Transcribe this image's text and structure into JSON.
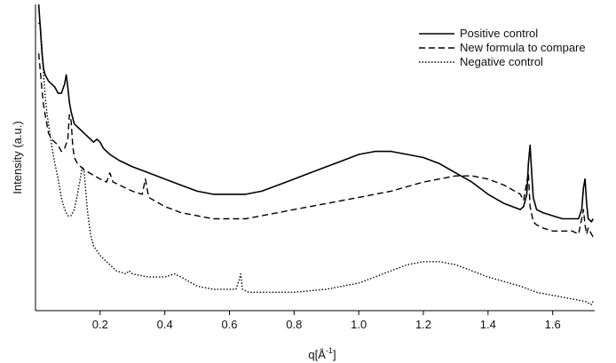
{
  "chart_data": {
    "type": "line",
    "xlabel": "q[Å⁻¹]",
    "ylabel": "Intensity (a.u.)",
    "xlim": [
      0.0,
      1.73
    ],
    "ylim": [
      0,
      100
    ],
    "y_ticks_shown": false,
    "x_ticks": [
      {
        "value": 0.2,
        "label": "0.2"
      },
      {
        "value": 0.4,
        "label": "0.4"
      },
      {
        "value": 0.6,
        "label": "0.6"
      },
      {
        "value": 0.8,
        "label": "0.8"
      },
      {
        "value": 1.0,
        "label": "1.0"
      },
      {
        "value": 1.2,
        "label": "1.2"
      },
      {
        "value": 1.4,
        "label": "1.4"
      },
      {
        "value": 1.6,
        "label": "1.6"
      }
    ],
    "legend": {
      "position": "top-right"
    },
    "series": [
      {
        "name": "Positive control",
        "style": "solid",
        "color": "#000000",
        "x": [
          0.01,
          0.015,
          0.02,
          0.025,
          0.03,
          0.04,
          0.05,
          0.06,
          0.07,
          0.08,
          0.09,
          0.095,
          0.1,
          0.105,
          0.11,
          0.12,
          0.14,
          0.16,
          0.18,
          0.19,
          0.2,
          0.21,
          0.23,
          0.26,
          0.3,
          0.35,
          0.4,
          0.45,
          0.5,
          0.55,
          0.6,
          0.65,
          0.7,
          0.75,
          0.8,
          0.85,
          0.9,
          0.95,
          1.0,
          1.05,
          1.1,
          1.15,
          1.2,
          1.25,
          1.3,
          1.35,
          1.4,
          1.45,
          1.5,
          1.51,
          1.52,
          1.525,
          1.53,
          1.535,
          1.54,
          1.55,
          1.57,
          1.6,
          1.63,
          1.66,
          1.68,
          1.69,
          1.695,
          1.7,
          1.705,
          1.71,
          1.72,
          1.725
        ],
        "y": [
          100,
          92,
          84,
          79,
          77,
          75,
          74,
          73,
          71,
          71,
          74,
          77,
          73,
          68,
          65,
          61,
          59,
          57,
          55,
          56,
          55,
          53,
          51,
          49,
          47,
          45,
          43,
          41,
          39,
          38,
          38,
          38,
          39,
          41,
          43,
          45,
          47,
          49,
          51,
          52,
          52,
          51,
          50,
          48,
          45,
          42,
          38,
          35,
          33,
          34,
          38,
          48,
          54,
          45,
          37,
          33,
          32,
          31,
          30,
          30,
          30,
          33,
          40,
          43,
          35,
          30,
          29,
          30
        ]
      },
      {
        "name": "New formula to compare",
        "style": "dashed",
        "color": "#000000",
        "x": [
          0.01,
          0.015,
          0.02,
          0.025,
          0.03,
          0.04,
          0.05,
          0.06,
          0.07,
          0.08,
          0.09,
          0.1,
          0.105,
          0.11,
          0.115,
          0.12,
          0.13,
          0.15,
          0.2,
          0.22,
          0.23,
          0.24,
          0.3,
          0.33,
          0.34,
          0.35,
          0.4,
          0.45,
          0.5,
          0.55,
          0.6,
          0.65,
          0.7,
          0.8,
          0.9,
          1.0,
          1.1,
          1.2,
          1.3,
          1.35,
          1.4,
          1.45,
          1.5,
          1.51,
          1.52,
          1.525,
          1.53,
          1.54,
          1.55,
          1.57,
          1.6,
          1.63,
          1.66,
          1.68,
          1.69,
          1.695,
          1.7,
          1.705,
          1.71,
          1.72,
          1.725
        ],
        "y": [
          84,
          78,
          72,
          67,
          64,
          58,
          56,
          55,
          54,
          52,
          53,
          56,
          64,
          62,
          54,
          50,
          48,
          46,
          43,
          42,
          45,
          42,
          39,
          38,
          43,
          37,
          34,
          32,
          31,
          30,
          30,
          30,
          31,
          33,
          35,
          37,
          39,
          42,
          44,
          44,
          43,
          41,
          38,
          36,
          42,
          45,
          34,
          29,
          28,
          27,
          26,
          26,
          26,
          25,
          30,
          33,
          28,
          25,
          27,
          25,
          24
        ]
      },
      {
        "name": "Negative control",
        "style": "dotted",
        "color": "#000000",
        "x": [
          0.01,
          0.015,
          0.02,
          0.025,
          0.03,
          0.035,
          0.04,
          0.05,
          0.06,
          0.07,
          0.08,
          0.09,
          0.1,
          0.11,
          0.12,
          0.13,
          0.14,
          0.145,
          0.15,
          0.155,
          0.16,
          0.17,
          0.18,
          0.2,
          0.25,
          0.28,
          0.29,
          0.3,
          0.35,
          0.4,
          0.43,
          0.45,
          0.5,
          0.55,
          0.6,
          0.62,
          0.63,
          0.635,
          0.64,
          0.66,
          0.7,
          0.8,
          0.9,
          1.0,
          1.05,
          1.1,
          1.15,
          1.2,
          1.25,
          1.3,
          1.35,
          1.4,
          1.5,
          1.55,
          1.6,
          1.65,
          1.7,
          1.72,
          1.725
        ],
        "y": [
          94,
          93,
          86,
          77,
          70,
          65,
          61,
          54,
          48,
          43,
          37,
          33,
          31,
          31,
          33,
          38,
          44,
          47,
          46,
          40,
          33,
          25,
          21,
          18,
          13,
          12,
          13,
          12,
          11,
          11,
          12,
          11,
          8,
          7,
          7,
          7,
          10,
          12,
          7,
          6,
          6,
          6,
          7,
          9,
          11,
          13,
          15,
          16,
          16,
          15,
          13,
          11,
          8,
          6,
          5,
          4,
          3,
          2,
          3
        ]
      }
    ]
  }
}
